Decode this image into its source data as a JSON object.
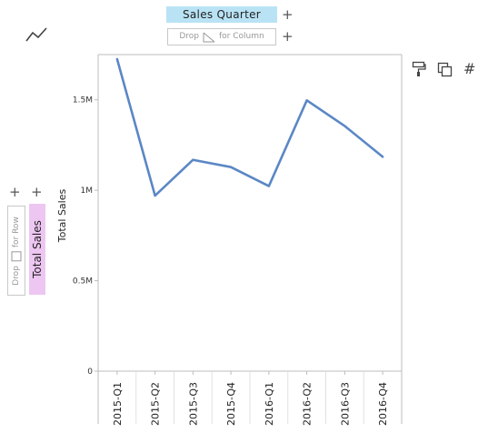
{
  "toolbar": {
    "chart_type_icon": "line-chart-icon",
    "x_field_label": "Sales Quarter",
    "add_symbol": "+",
    "column_drop_text_left": "Drop",
    "column_drop_text_right": "for Column",
    "row_drop_text_left": "Drop",
    "row_drop_text_right": "for Row",
    "y_field_label": "Total Sales",
    "icons": [
      "format-painter-icon",
      "copy-icon",
      "hash-icon"
    ],
    "hash_symbol": "#"
  },
  "colors": {
    "line": "#5b87c5",
    "x_pill": "#b9e3f5",
    "y_pill": "#eec6f2"
  },
  "chart_data": {
    "type": "line",
    "categories": [
      "2015-Q1",
      "2015-Q2",
      "2015-Q3",
      "2015-Q4",
      "2016-Q1",
      "2016-Q2",
      "2016-Q3",
      "2016-Q4"
    ],
    "series": [
      {
        "values": [
          1725000,
          970000,
          1168000,
          1128000,
          1023000,
          1497000,
          1355000,
          1185000
        ]
      }
    ],
    "ylabel": "Total Sales",
    "ylim": [
      0,
      1750000
    ],
    "yticks": [
      0,
      500000,
      1000000,
      1500000
    ],
    "ytick_labels": [
      "0",
      "0.5M",
      "1M",
      "1.5M"
    ],
    "grid": false,
    "legend": "none"
  }
}
